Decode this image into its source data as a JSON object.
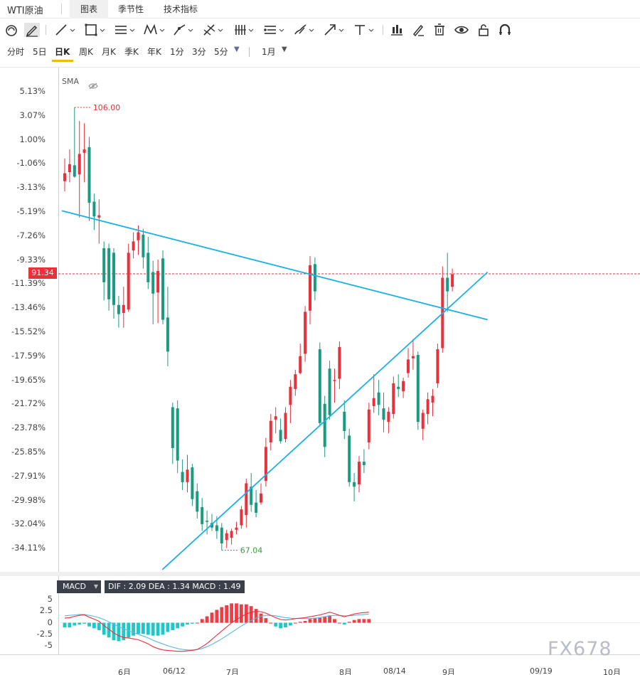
{
  "header": {
    "title": "WTI原油",
    "tabs": [
      {
        "label": "图表",
        "active": true
      },
      {
        "label": "季节性",
        "active": false
      },
      {
        "label": "技术指标",
        "active": false
      }
    ]
  },
  "toolbar": {
    "icons": [
      "magnet-icon",
      "pencil-icon",
      "line-icon",
      "rectangle-icon",
      "channel-icon",
      "pattern-icon",
      "xabcd-icon",
      "fib-icon",
      "gann-icon",
      "measure-icon",
      "brush-icon",
      "arrow-icon",
      "text-icon",
      "bars-icon",
      "edit-icon",
      "trash-icon",
      "eye-icon",
      "lock-icon",
      "magnet-u-icon"
    ]
  },
  "periods": {
    "items": [
      "分时",
      "5日",
      "日K",
      "周K",
      "月K",
      "季K",
      "年K",
      "1分",
      "3分",
      "5分"
    ],
    "active": "日K",
    "range": "1月"
  },
  "colors": {
    "up": "#e8313b",
    "down": "#1a9a80",
    "trendline": "#1ab0e8",
    "dif": "#e8313b",
    "dea": "#5bb8e6",
    "hist_up": "#f03c45",
    "hist_down": "#1ec8c8"
  },
  "chart_data": {
    "type": "candlestick",
    "indicator_label": "SMA",
    "y_ticks": [
      "5.13%",
      "3.07%",
      "1.00%",
      "-1.06%",
      "-3.13%",
      "-5.19%",
      "-7.26%",
      "-9.33%",
      "-11.39%",
      "-13.46%",
      "-15.52%",
      "-17.59%",
      "-19.65%",
      "-21.72%",
      "-23.78%",
      "-25.85%",
      "-27.91%",
      "-29.98%",
      "-32.04%",
      "-34.11%"
    ],
    "ylim": [
      67.04,
      106.0
    ],
    "current_price": "91.34",
    "current_price_value": 91.34,
    "high_label": "106.00",
    "low_label": "67.04",
    "x_ticks": [
      "6月",
      "06/12",
      "7月",
      "8月",
      "08/14",
      "9月",
      "09/19",
      "10月"
    ],
    "candles": [
      {
        "o": 99.5,
        "h": 101.5,
        "l": 98.6,
        "c": 100.2
      },
      {
        "o": 100.3,
        "h": 102.3,
        "l": 99.4,
        "c": 101.0
      },
      {
        "o": 100.9,
        "h": 106.0,
        "l": 99.8,
        "c": 99.9
      },
      {
        "o": 100.1,
        "h": 104.8,
        "l": 96.3,
        "c": 101.9
      },
      {
        "o": 102.0,
        "h": 104.6,
        "l": 99.4,
        "c": 102.3
      },
      {
        "o": 102.5,
        "h": 103.4,
        "l": 96.0,
        "c": 97.6
      },
      {
        "o": 97.7,
        "h": 98.4,
        "l": 95.2,
        "c": 96.4
      },
      {
        "o": 96.3,
        "h": 97.9,
        "l": 94.0,
        "c": 96.5
      },
      {
        "o": 93.6,
        "h": 94.2,
        "l": 89.0,
        "c": 90.6
      },
      {
        "o": 93.6,
        "h": 94.0,
        "l": 88.1,
        "c": 89.1
      },
      {
        "o": 93.2,
        "h": 93.6,
        "l": 87.4,
        "c": 88.6
      },
      {
        "o": 88.6,
        "h": 89.4,
        "l": 86.6,
        "c": 87.8
      },
      {
        "o": 87.9,
        "h": 90.2,
        "l": 86.6,
        "c": 88.6
      },
      {
        "o": 88.2,
        "h": 94.0,
        "l": 88.0,
        "c": 93.2
      },
      {
        "o": 93.4,
        "h": 95.0,
        "l": 92.7,
        "c": 94.2
      },
      {
        "o": 94.3,
        "h": 95.6,
        "l": 93.0,
        "c": 95.0
      },
      {
        "o": 94.8,
        "h": 95.3,
        "l": 91.8,
        "c": 92.8
      },
      {
        "o": 93.2,
        "h": 94.6,
        "l": 90.0,
        "c": 90.6
      },
      {
        "o": 91.5,
        "h": 92.5,
        "l": 86.9,
        "c": 89.6
      },
      {
        "o": 89.7,
        "h": 92.6,
        "l": 87.0,
        "c": 91.6
      },
      {
        "o": 92.7,
        "h": 93.4,
        "l": 86.9,
        "c": 87.3
      },
      {
        "o": 87.5,
        "h": 90.2,
        "l": 83.2,
        "c": 84.5
      },
      {
        "o": 79.6,
        "h": 80.0,
        "l": 74.6,
        "c": 76.0
      },
      {
        "o": 79.5,
        "h": 80.2,
        "l": 73.8,
        "c": 74.9
      },
      {
        "o": 73.9,
        "h": 75.0,
        "l": 72.3,
        "c": 73.0
      },
      {
        "o": 73.0,
        "h": 75.4,
        "l": 72.1,
        "c": 74.1
      },
      {
        "o": 74.3,
        "h": 74.6,
        "l": 70.9,
        "c": 71.5
      },
      {
        "o": 72.2,
        "h": 72.9,
        "l": 69.8,
        "c": 70.4
      },
      {
        "o": 70.8,
        "h": 71.6,
        "l": 68.7,
        "c": 69.3
      },
      {
        "o": 69.6,
        "h": 70.5,
        "l": 68.4,
        "c": 69.5
      },
      {
        "o": 69.4,
        "h": 70.2,
        "l": 68.7,
        "c": 69.0
      },
      {
        "o": 69.2,
        "h": 70.0,
        "l": 68.0,
        "c": 68.7
      },
      {
        "o": 69.0,
        "h": 69.4,
        "l": 67.0,
        "c": 67.6
      },
      {
        "o": 67.9,
        "h": 68.8,
        "l": 67.2,
        "c": 68.5
      },
      {
        "o": 68.1,
        "h": 68.9,
        "l": 67.5,
        "c": 68.7
      },
      {
        "o": 68.8,
        "h": 69.5,
        "l": 68.4,
        "c": 69.0
      },
      {
        "o": 69.2,
        "h": 70.9,
        "l": 68.9,
        "c": 70.6
      },
      {
        "o": 70.1,
        "h": 73.3,
        "l": 69.0,
        "c": 72.9
      },
      {
        "o": 72.6,
        "h": 73.8,
        "l": 70.4,
        "c": 71.0
      },
      {
        "o": 71.2,
        "h": 72.3,
        "l": 69.9,
        "c": 70.3
      },
      {
        "o": 71.2,
        "h": 72.9,
        "l": 71.0,
        "c": 72.0
      },
      {
        "o": 73.1,
        "h": 76.9,
        "l": 72.6,
        "c": 76.1
      },
      {
        "o": 76.5,
        "h": 79.0,
        "l": 75.8,
        "c": 78.4
      },
      {
        "o": 78.5,
        "h": 79.6,
        "l": 77.3,
        "c": 78.8
      },
      {
        "o": 77.6,
        "h": 78.6,
        "l": 76.4,
        "c": 76.6
      },
      {
        "o": 76.8,
        "h": 79.6,
        "l": 76.5,
        "c": 79.1
      },
      {
        "o": 79.8,
        "h": 82.0,
        "l": 78.2,
        "c": 81.4
      },
      {
        "o": 81.2,
        "h": 82.9,
        "l": 80.6,
        "c": 82.5
      },
      {
        "o": 82.6,
        "h": 85.2,
        "l": 82.5,
        "c": 84.1
      },
      {
        "o": 84.3,
        "h": 88.5,
        "l": 83.6,
        "c": 88.0
      },
      {
        "o": 88.1,
        "h": 92.9,
        "l": 86.9,
        "c": 92.1
      },
      {
        "o": 92.2,
        "h": 92.8,
        "l": 89.0,
        "c": 89.8
      },
      {
        "o": 84.7,
        "h": 85.3,
        "l": 77.9,
        "c": 78.2
      },
      {
        "o": 79.9,
        "h": 80.6,
        "l": 75.2,
        "c": 76.1
      },
      {
        "o": 83.0,
        "h": 83.7,
        "l": 78.5,
        "c": 78.9
      },
      {
        "o": 81.9,
        "h": 83.0,
        "l": 80.0,
        "c": 82.0
      },
      {
        "o": 82.1,
        "h": 85.4,
        "l": 81.2,
        "c": 84.9
      },
      {
        "o": 79.2,
        "h": 80.2,
        "l": 76.8,
        "c": 77.5
      },
      {
        "o": 77.1,
        "h": 77.7,
        "l": 72.6,
        "c": 73.0
      },
      {
        "o": 73.0,
        "h": 73.8,
        "l": 71.3,
        "c": 72.6
      },
      {
        "o": 72.8,
        "h": 75.3,
        "l": 72.1,
        "c": 74.8
      },
      {
        "o": 74.8,
        "h": 75.9,
        "l": 73.8,
        "c": 74.5
      },
      {
        "o": 76.5,
        "h": 80.0,
        "l": 75.9,
        "c": 79.4
      },
      {
        "o": 79.7,
        "h": 82.5,
        "l": 79.1,
        "c": 80.4
      },
      {
        "o": 80.9,
        "h": 82.0,
        "l": 78.9,
        "c": 79.8
      },
      {
        "o": 79.5,
        "h": 80.9,
        "l": 77.4,
        "c": 78.5
      },
      {
        "o": 78.3,
        "h": 79.6,
        "l": 77.3,
        "c": 79.2
      },
      {
        "o": 79.0,
        "h": 82.3,
        "l": 78.6,
        "c": 81.7
      },
      {
        "o": 81.4,
        "h": 82.5,
        "l": 80.5,
        "c": 81.2
      },
      {
        "o": 81.0,
        "h": 82.2,
        "l": 80.4,
        "c": 81.9
      },
      {
        "o": 82.6,
        "h": 84.8,
        "l": 82.2,
        "c": 83.8
      },
      {
        "o": 83.9,
        "h": 85.6,
        "l": 82.9,
        "c": 84.1
      },
      {
        "o": 84.2,
        "h": 84.5,
        "l": 77.6,
        "c": 78.3
      },
      {
        "o": 77.7,
        "h": 79.4,
        "l": 76.7,
        "c": 79.1
      },
      {
        "o": 79.0,
        "h": 80.9,
        "l": 78.1,
        "c": 80.3
      },
      {
        "o": 80.0,
        "h": 81.2,
        "l": 78.8,
        "c": 80.6
      },
      {
        "o": 81.7,
        "h": 85.2,
        "l": 81.3,
        "c": 84.7
      },
      {
        "o": 84.8,
        "h": 92.0,
        "l": 84.4,
        "c": 91.0
      },
      {
        "o": 91.0,
        "h": 93.2,
        "l": 88.0,
        "c": 89.8
      },
      {
        "o": 90.2,
        "h": 91.8,
        "l": 89.8,
        "c": 91.3
      }
    ],
    "trendlines": [
      {
        "from": [
          -0.6,
          96.9
        ],
        "to": [
          86.2,
          87.3
        ]
      },
      {
        "from": [
          19.9,
          65.3
        ],
        "to": [
          86.2,
          91.5
        ]
      }
    ],
    "macd": {
      "indicator": "MACD",
      "info": "DIF : 2.09   DEA : 1.34   MACD : 1.49",
      "dif_value": 2.09,
      "dea_value": 1.34,
      "macd_value": 1.49,
      "y_ticks": [
        "5",
        "2.5",
        "0",
        "-2.5",
        "-5"
      ],
      "ylim": [
        -6.4,
        5.8
      ],
      "dif": [
        1.0,
        1.1,
        1.4,
        1.6,
        1.7,
        1.2,
        0.8,
        0.3,
        -0.6,
        -1.4,
        -2.2,
        -2.8,
        -3.2,
        -3.3,
        -3.5,
        -3.7,
        -4.1,
        -4.6,
        -5.2,
        -5.6,
        -5.9,
        -6.0,
        -6.1,
        -6.2,
        -6.2,
        -6.1,
        -6.0,
        -5.8,
        -5.2,
        -4.5,
        -3.6,
        -2.7,
        -1.8,
        -0.9,
        0.0,
        0.7,
        1.3,
        1.9,
        2.3,
        2.5,
        2.4,
        2.1,
        1.6,
        1.1,
        0.7,
        0.6,
        0.7,
        0.9,
        1.0,
        1.1,
        1.3,
        1.5,
        1.7,
        2.0,
        2.3,
        2.0,
        1.6,
        1.3,
        1.6,
        1.9,
        2.1,
        2.2,
        2.3
      ],
      "dea": [
        1.5,
        1.6,
        1.7,
        1.8,
        1.8,
        1.6,
        1.4,
        1.1,
        0.7,
        0.2,
        -0.3,
        -0.8,
        -1.3,
        -1.7,
        -2.1,
        -2.5,
        -2.9,
        -3.3,
        -3.8,
        -4.2,
        -4.6,
        -5.0,
        -5.3,
        -5.6,
        -5.8,
        -5.9,
        -5.9,
        -5.8,
        -5.6,
        -5.2,
        -4.7,
        -4.1,
        -3.5,
        -2.8,
        -2.1,
        -1.4,
        -0.7,
        -0.1,
        0.5,
        1.0,
        1.4,
        1.6,
        1.6,
        1.5,
        1.3,
        1.1,
        1.0,
        0.9,
        0.9,
        0.9,
        0.9,
        1.0,
        1.1,
        1.3,
        1.5,
        1.6,
        1.6,
        1.5,
        1.5,
        1.6,
        1.7,
        1.8,
        1.9
      ]
    }
  },
  "watermark": "FX678"
}
